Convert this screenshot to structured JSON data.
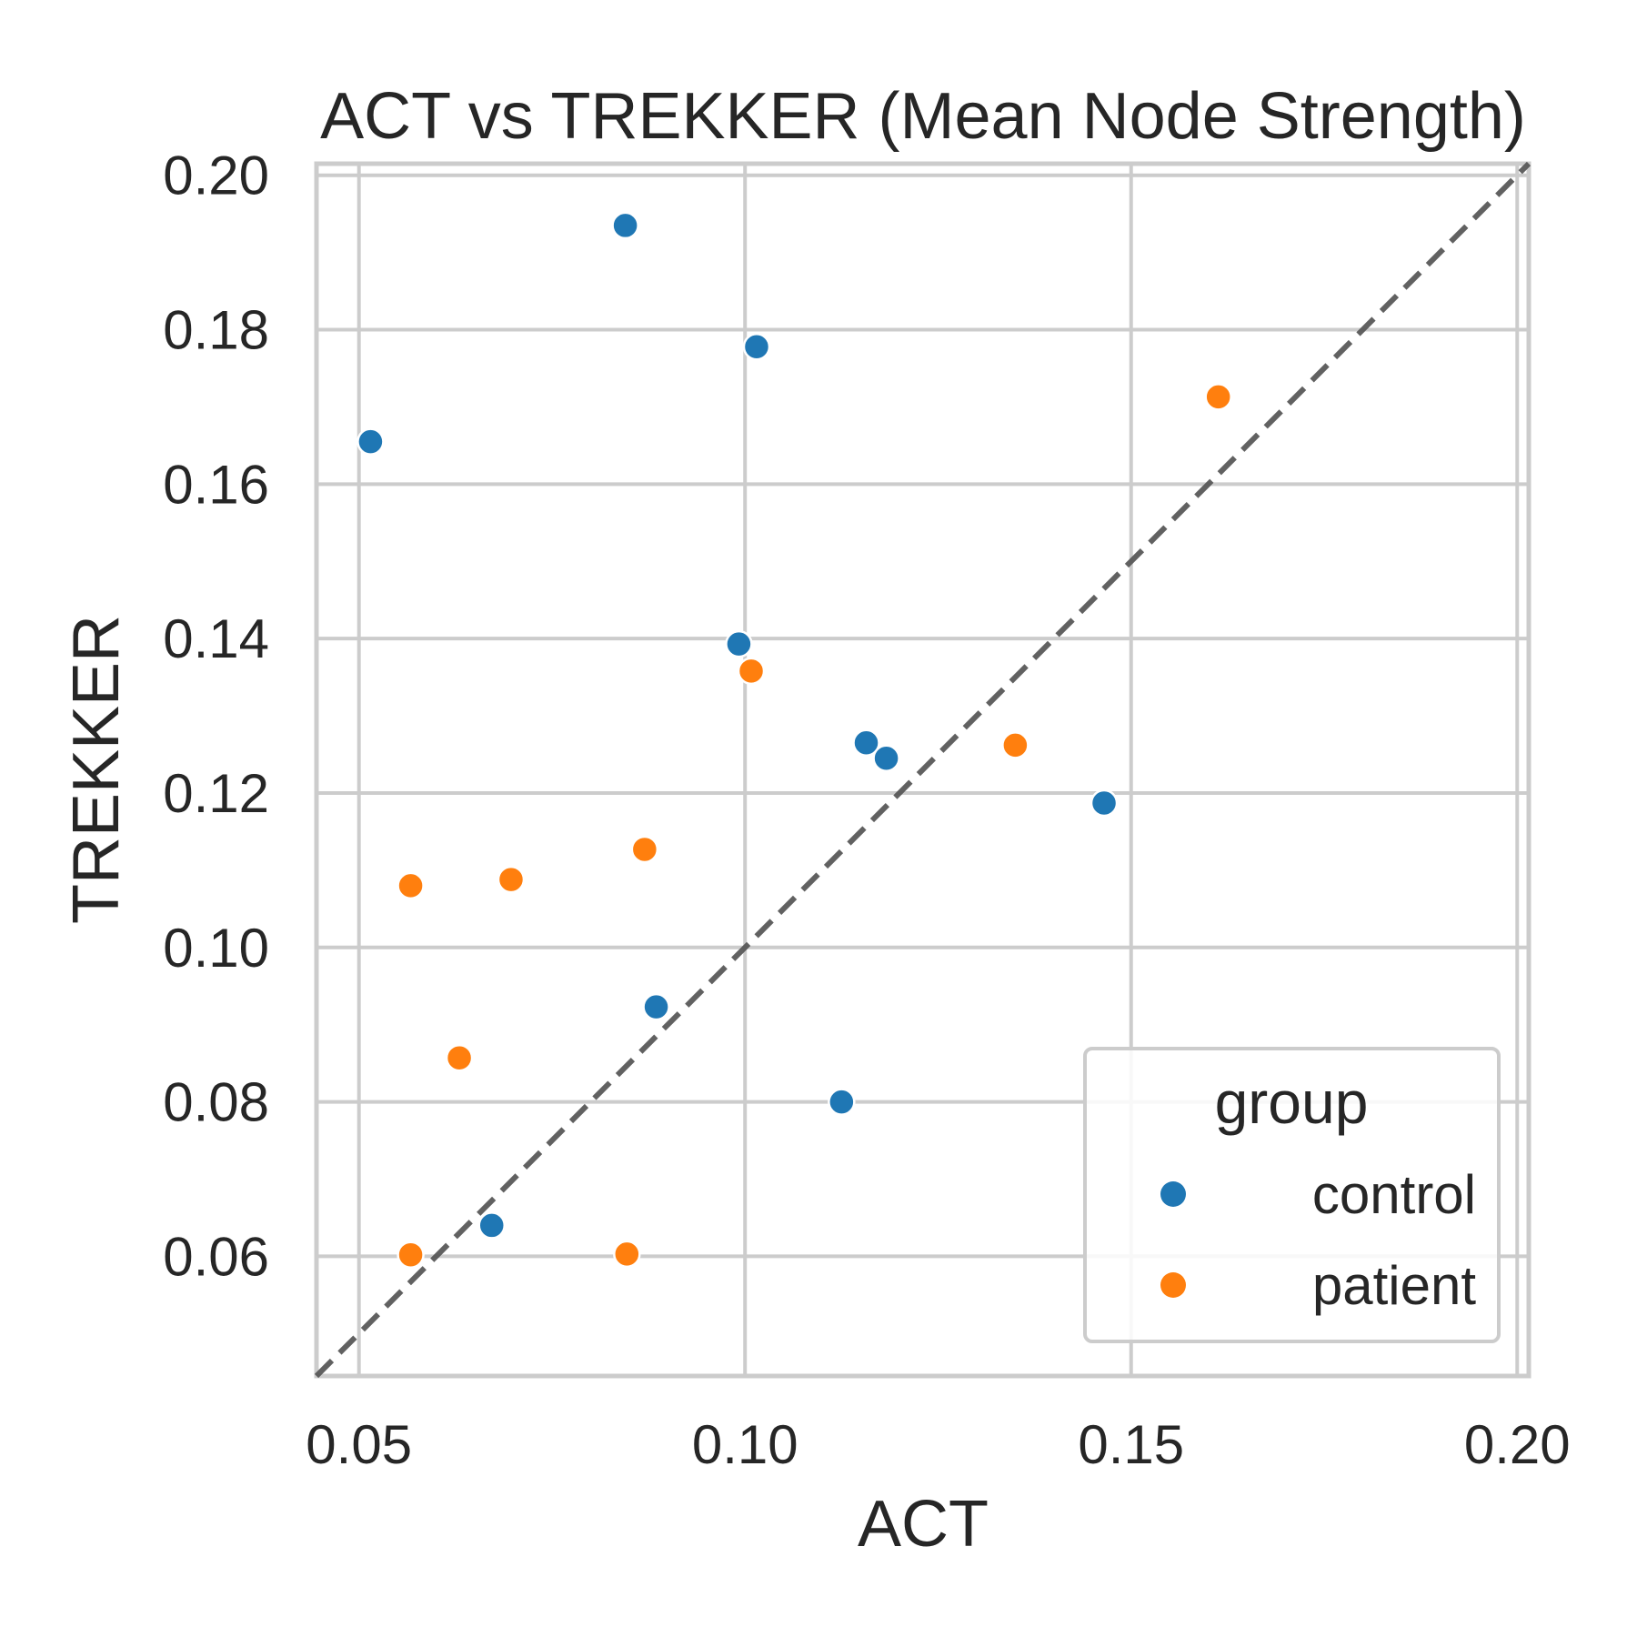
{
  "chart_data": {
    "type": "scatter",
    "title": "ACT vs TREKKER (Mean Node Strength)",
    "xlabel": "ACT",
    "ylabel": "TREKKER",
    "xlim": [
      0.0445,
      0.2015
    ],
    "ylim": [
      0.0445,
      0.2015
    ],
    "xticks": [
      "0.05",
      "0.10",
      "0.15",
      "0.20"
    ],
    "yticks": [
      "0.06",
      "0.08",
      "0.10",
      "0.12",
      "0.14",
      "0.16",
      "0.18",
      "0.20"
    ],
    "grid": true,
    "reference_line": {
      "style": "dashed",
      "color": "#595959",
      "from": [
        0.0445,
        0.0445
      ],
      "to": [
        0.2015,
        0.2015
      ]
    },
    "legend": {
      "title": "group",
      "placement": "lower-right",
      "entries": [
        {
          "label": "control",
          "color": "#1f77b4"
        },
        {
          "label": "patient",
          "color": "#ff7f0e"
        }
      ]
    },
    "series": [
      {
        "name": "control",
        "color": "#1f77b4",
        "points": [
          {
            "x": 0.0845,
            "y": 0.1935
          },
          {
            "x": 0.1015,
            "y": 0.1778
          },
          {
            "x": 0.0515,
            "y": 0.1655
          },
          {
            "x": 0.0992,
            "y": 0.1393
          },
          {
            "x": 0.1157,
            "y": 0.1265
          },
          {
            "x": 0.1183,
            "y": 0.1245
          },
          {
            "x": 0.1465,
            "y": 0.1187
          },
          {
            "x": 0.0885,
            "y": 0.0923
          },
          {
            "x": 0.1125,
            "y": 0.08
          },
          {
            "x": 0.0672,
            "y": 0.064
          }
        ]
      },
      {
        "name": "patient",
        "color": "#ff7f0e",
        "points": [
          {
            "x": 0.1613,
            "y": 0.1713
          },
          {
            "x": 0.1008,
            "y": 0.1358
          },
          {
            "x": 0.135,
            "y": 0.1262
          },
          {
            "x": 0.087,
            "y": 0.1127
          },
          {
            "x": 0.0697,
            "y": 0.1088
          },
          {
            "x": 0.0567,
            "y": 0.108
          },
          {
            "x": 0.063,
            "y": 0.0857
          },
          {
            "x": 0.0567,
            "y": 0.0602
          },
          {
            "x": 0.0847,
            "y": 0.0603
          }
        ]
      }
    ]
  }
}
